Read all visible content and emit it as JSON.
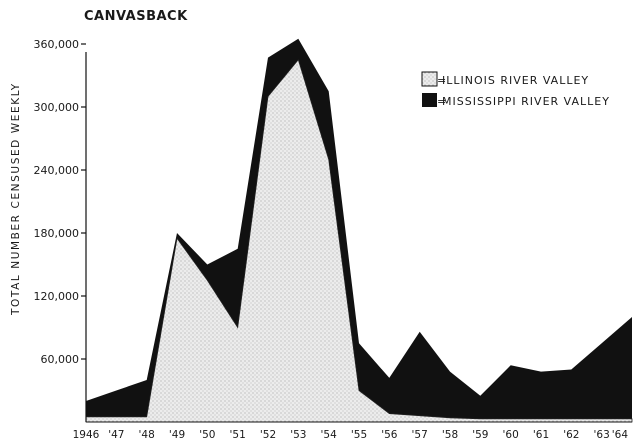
{
  "chart_data": {
    "type": "area",
    "stacked": true,
    "title": "CANVASBACK",
    "ylabel": "TOTAL NUMBER CENSUSED WEEKLY",
    "xlabel": "",
    "x": [
      "1946",
      "'47",
      "'48",
      "'49",
      "'50",
      "'51",
      "'52",
      "'53",
      "'54",
      "'55",
      "'56",
      "'57",
      "'58",
      "'59",
      "'60",
      "'61",
      "'62",
      "'63",
      "'64"
    ],
    "ylim": [
      0,
      360000
    ],
    "yticks": [
      60000,
      120000,
      180000,
      240000,
      300000,
      360000
    ],
    "ytick_labels": [
      "60,000",
      "120,000",
      "180,000",
      "240,000",
      "300,000",
      "360,000"
    ],
    "grid": false,
    "legend_position": "top-right",
    "series": [
      {
        "name": "ILLINOIS RIVER VALLEY",
        "pattern": "dotted",
        "color": "#e8e8e8",
        "values": [
          5000,
          5000,
          5000,
          175000,
          135000,
          90000,
          310000,
          345000,
          250000,
          30000,
          8000,
          6000,
          4000,
          3000,
          3000,
          3000,
          3000,
          3000,
          3000
        ]
      },
      {
        "name": "MISSISSIPPI RIVER VALLEY",
        "pattern": "solid",
        "color": "#111111",
        "values": [
          15000,
          25000,
          35000,
          5000,
          15000,
          75000,
          37000,
          20000,
          65000,
          45000,
          34000,
          80000,
          44000,
          22000,
          51000,
          45000,
          47000,
          72000,
          97000
        ]
      }
    ]
  }
}
